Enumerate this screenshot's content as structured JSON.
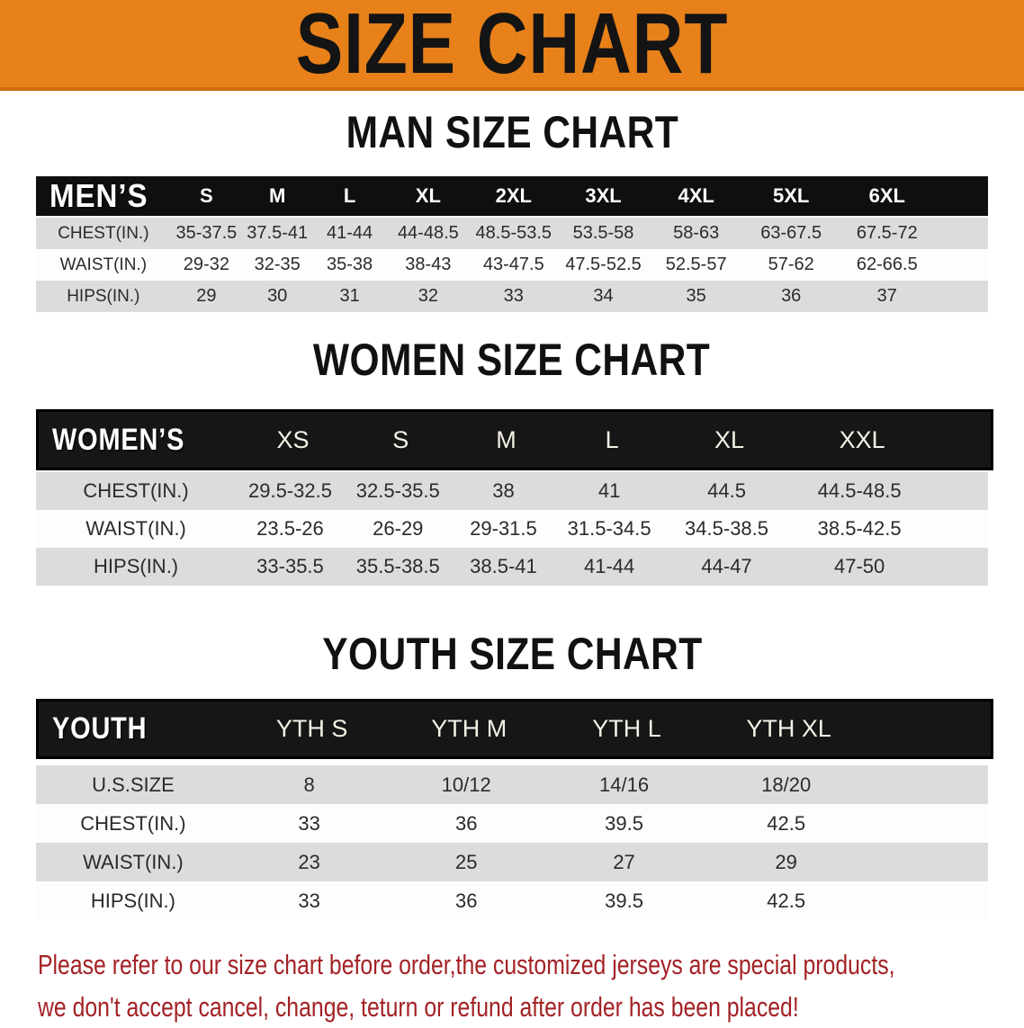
{
  "banner": {
    "title": "SIZE CHART",
    "bg_color": "#E8811A",
    "text_color": "#141414"
  },
  "sections": [
    {
      "heading": "MAN SIZE CHART",
      "table": {
        "corner": "MEN’S",
        "columns": [
          "S",
          "M",
          "L",
          "XL",
          "2XL",
          "3XL",
          "4XL",
          "5XL",
          "6XL"
        ],
        "rows": [
          {
            "label": "CHEST(IN.)",
            "values": [
              "35-37.5",
              "37.5-41",
              "41-44",
              "44-48.5",
              "48.5-53.5",
              "53.5-58",
              "58-63",
              "63-67.5",
              "67.5-72"
            ]
          },
          {
            "label": "WAIST(IN.)",
            "values": [
              "29-32",
              "32-35",
              "35-38",
              "38-43",
              "43-47.5",
              "47.5-52.5",
              "52.5-57",
              "57-62",
              "62-66.5"
            ]
          },
          {
            "label": "HIPS(IN.)",
            "values": [
              "29",
              "30",
              "31",
              "32",
              "33",
              "34",
              "35",
              "36",
              "37"
            ]
          }
        ]
      }
    },
    {
      "heading": "WOMEN SIZE CHART",
      "table": {
        "corner": "WOMEN’S",
        "columns": [
          "XS",
          "S",
          "M",
          "L",
          "XL",
          "XXL"
        ],
        "rows": [
          {
            "label": "CHEST(IN.)",
            "values": [
              "29.5-32.5",
              "32.5-35.5",
              "38",
              "41",
              "44.5",
              "44.5-48.5"
            ]
          },
          {
            "label": "WAIST(IN.)",
            "values": [
              "23.5-26",
              "26-29",
              "29-31.5",
              "31.5-34.5",
              "34.5-38.5",
              "38.5-42.5"
            ]
          },
          {
            "label": "HIPS(IN.)",
            "values": [
              "33-35.5",
              "35.5-38.5",
              "38.5-41",
              "41-44",
              "44-47",
              "47-50"
            ]
          }
        ]
      }
    },
    {
      "heading": "YOUTH SIZE CHART",
      "table": {
        "corner": "YOUTH",
        "columns": [
          "YTH S",
          "YTH M",
          "YTH L",
          "YTH XL"
        ],
        "rows": [
          {
            "label": "U.S.SIZE",
            "values": [
              "8",
              "10/12",
              "14/16",
              "18/20"
            ]
          },
          {
            "label": "CHEST(IN.)",
            "values": [
              "33",
              "36",
              "39.5",
              "42.5"
            ]
          },
          {
            "label": "WAIST(IN.)",
            "values": [
              "23",
              "25",
              "27",
              "29"
            ]
          },
          {
            "label": "HIPS(IN.)",
            "values": [
              "33",
              "36",
              "39.5",
              "42.5"
            ]
          }
        ]
      }
    }
  ],
  "disclaimer": {
    "lines": [
      "Please refer to our size chart before order,the customized jerseys are special products,",
      "we don't accept cancel, change, teturn or refund after order has been placed!"
    ],
    "color": "#A32226"
  },
  "colors": {
    "header_bar_men": "#0F0F0F",
    "header_bar_women_youth": "#161616",
    "row_shade": "#DBDCDD",
    "row_plain": "#FDFDFD",
    "table_text": "#2B2B2B"
  }
}
